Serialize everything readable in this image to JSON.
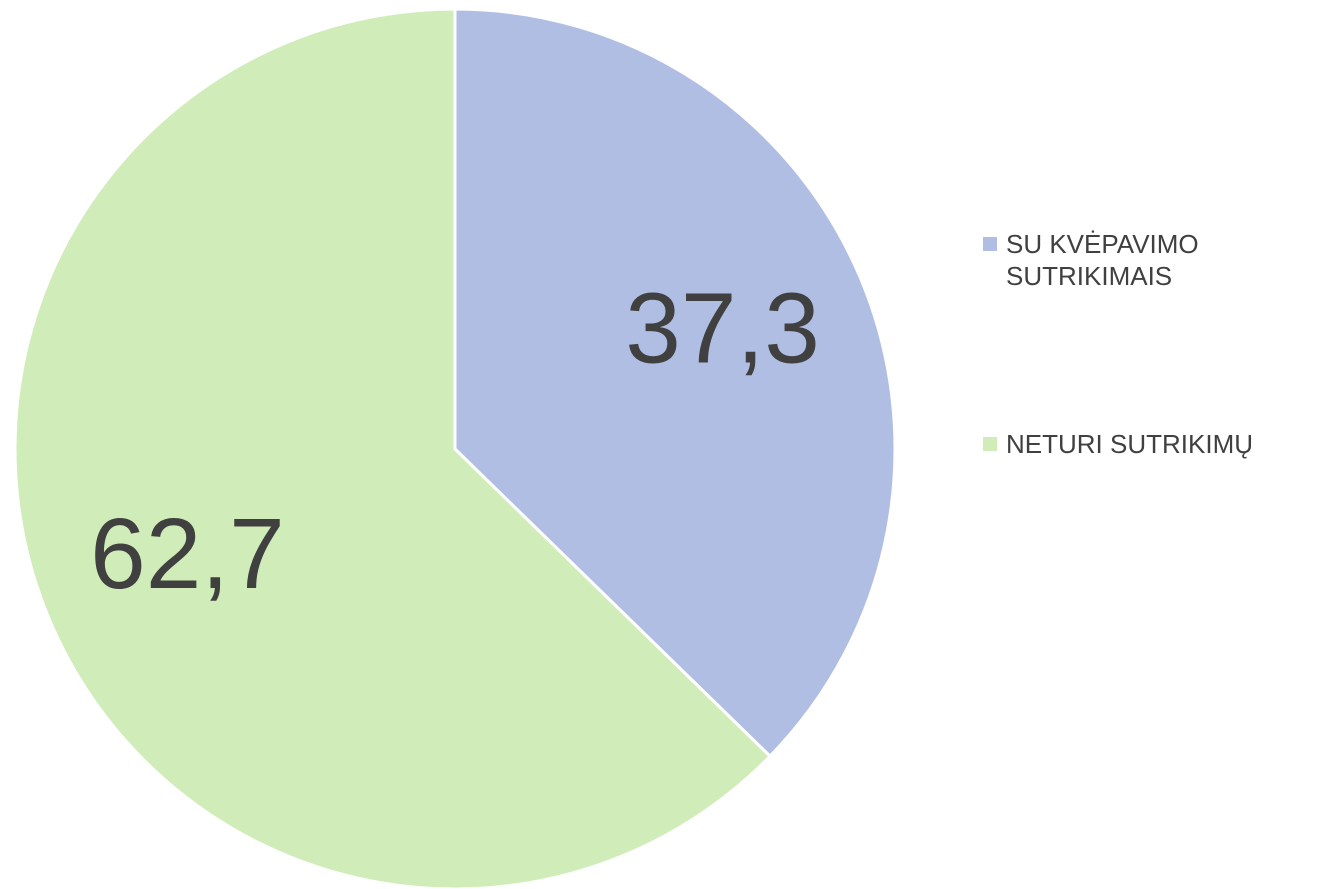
{
  "chart_data": {
    "type": "pie",
    "categories": [
      "SU KVĖPAVIMO SUTRIKIMAIS",
      "NETURI SUTRIKIMŲ"
    ],
    "values": [
      37.3,
      62.7
    ],
    "value_labels": [
      "37,3",
      "62,7"
    ],
    "colors": [
      "#afbee2",
      "#d0edb9"
    ]
  }
}
